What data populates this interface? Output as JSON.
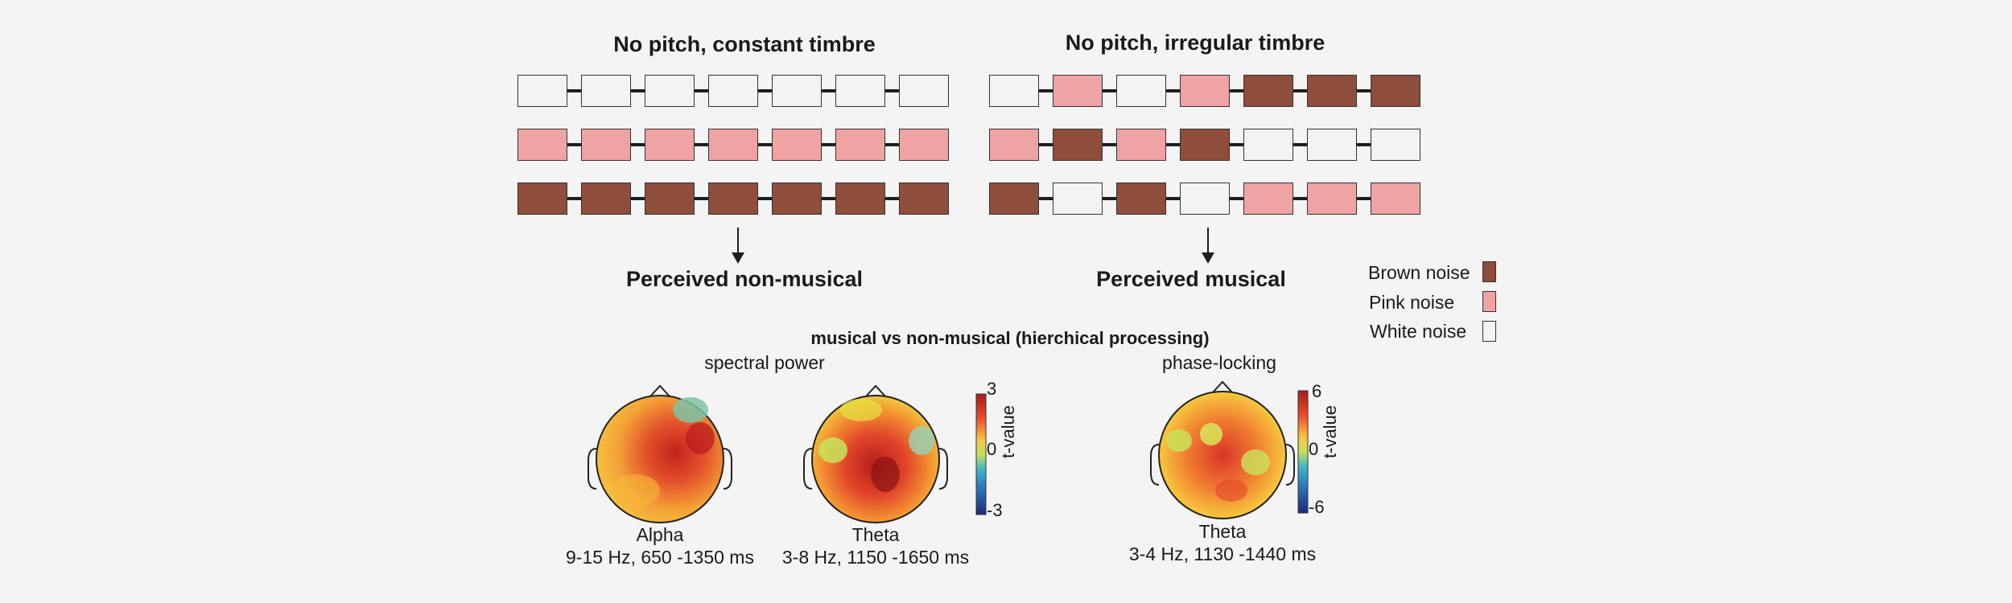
{
  "colors": {
    "brown": "#8f4d3b",
    "pink": "#f0a3a3",
    "white": "#f3f3f3"
  },
  "left_panel": {
    "title": "No pitch, constant timbre",
    "rows": [
      [
        "white",
        "white",
        "white",
        "white",
        "white",
        "white",
        "white"
      ],
      [
        "pink",
        "pink",
        "pink",
        "pink",
        "pink",
        "pink",
        "pink"
      ],
      [
        "brown",
        "brown",
        "brown",
        "brown",
        "brown",
        "brown",
        "brown"
      ]
    ],
    "result": "Perceived non-musical"
  },
  "right_panel": {
    "title": "No pitch, irregular timbre",
    "rows": [
      [
        "white",
        "pink",
        "white",
        "pink",
        "brown",
        "brown",
        "brown"
      ],
      [
        "pink",
        "brown",
        "pink",
        "brown",
        "white",
        "white",
        "white"
      ],
      [
        "brown",
        "white",
        "brown",
        "white",
        "pink",
        "pink",
        "pink"
      ]
    ],
    "result": "Perceived musical"
  },
  "legend": [
    {
      "label": "Brown noise",
      "color": "brown"
    },
    {
      "label": "Pink noise",
      "color": "pink"
    },
    {
      "label": "White noise",
      "color": "white"
    }
  ],
  "topo": {
    "title": "musical vs non-musical (hierchical processing)",
    "spectral_label": "spectral power",
    "phase_label": "phase-locking",
    "maps": [
      {
        "band": "Alpha",
        "detail": "9-15 Hz, 650 -1350 ms"
      },
      {
        "band": "Theta",
        "detail": "3-8 Hz, 1150 -1650 ms"
      },
      {
        "band": "Theta",
        "detail": "3-4 Hz, 1130 -1440 ms"
      }
    ],
    "colorbar_spectral": {
      "max": "3",
      "mid": "0",
      "min": "-3",
      "label": "t-value"
    },
    "colorbar_phase": {
      "max": "6",
      "mid": "0",
      "min": "-6",
      "label": "t-value"
    }
  }
}
